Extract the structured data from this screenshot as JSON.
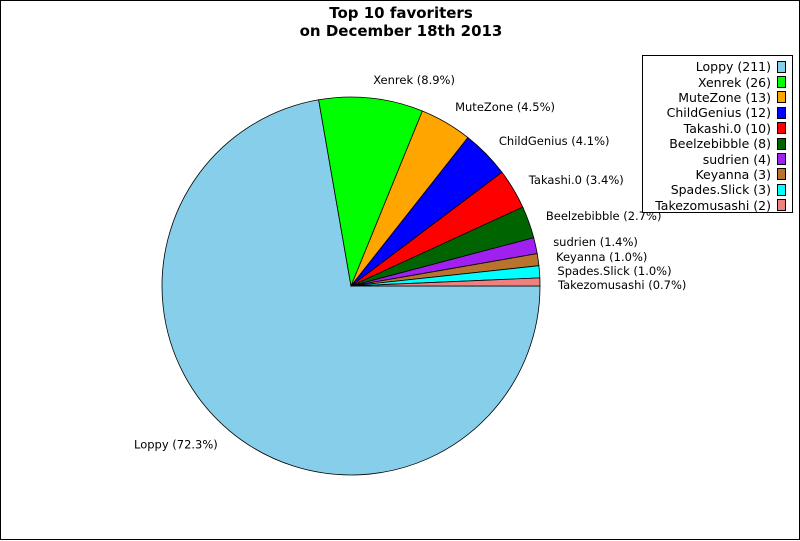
{
  "title_lines": [
    "Top 10 favoriters",
    "on December 18th 2013"
  ],
  "chart_data": {
    "type": "pie",
    "title": "Top 10 favoriters on December 18th 2013",
    "slices": [
      {
        "name": "Loppy",
        "count": 211,
        "percent": 72.3,
        "legend": "Loppy (211)",
        "label": "Loppy (72.3%)",
        "color": "#87CEEB"
      },
      {
        "name": "Xenrek",
        "count": 26,
        "percent": 8.9,
        "legend": "Xenrek (26)",
        "label": "Xenrek (8.9%)",
        "color": "#00FF00"
      },
      {
        "name": "MuteZone",
        "count": 13,
        "percent": 4.5,
        "legend": "MuteZone (13)",
        "label": "MuteZone (4.5%)",
        "color": "#FFA500"
      },
      {
        "name": "ChildGenius",
        "count": 12,
        "percent": 4.1,
        "legend": "ChildGenius (12)",
        "label": "ChildGenius (4.1%)",
        "color": "#0000FF"
      },
      {
        "name": "Takashi.0",
        "count": 10,
        "percent": 3.4,
        "legend": "Takashi.0 (10)",
        "label": "Takashi.0 (3.4%)",
        "color": "#FF0000"
      },
      {
        "name": "Beelzebibble",
        "count": 8,
        "percent": 2.7,
        "legend": "Beelzebibble (8)",
        "label": "Beelzebibble (2.7%)",
        "color": "#006400"
      },
      {
        "name": "sudrien",
        "count": 4,
        "percent": 1.4,
        "legend": "sudrien (4)",
        "label": "sudrien (1.4%)",
        "color": "#A020F0"
      },
      {
        "name": "Keyanna",
        "count": 3,
        "percent": 1.0,
        "legend": "Keyanna (3)",
        "label": "Keyanna (1.0%)",
        "color": "#B8732E"
      },
      {
        "name": "Spades.Slick",
        "count": 3,
        "percent": 1.0,
        "legend": "Spades.Slick (3)",
        "label": "Spades.Slick (1.0%)",
        "color": "#00FFFF"
      },
      {
        "name": "Takezomusashi",
        "count": 2,
        "percent": 0.7,
        "legend": "Takezomusashi (2)",
        "label": "Takezomusashi (0.7%)",
        "color": "#F08080"
      }
    ],
    "start": "3 o'clock",
    "direction": "clockwise",
    "legend_position": "top-right",
    "grid": false
  }
}
